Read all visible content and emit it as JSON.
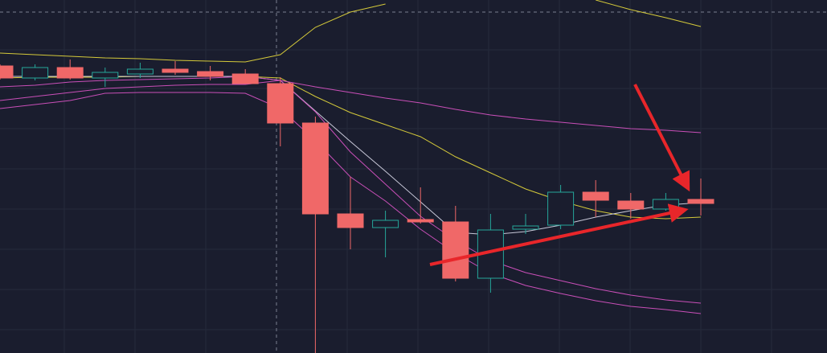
{
  "chart_data": {
    "type": "candlestick",
    "ylim": [
      0,
      439
    ],
    "up_color": "#26a69a",
    "down_color": "#f06868",
    "open": [
      357,
      342,
      355,
      342,
      347,
      353,
      350,
      347,
      335,
      286,
      173,
      156,
      166,
      163,
      93,
      154,
      159,
      200,
      189,
      179,
      191
    ],
    "close": [
      342,
      355,
      342,
      349,
      353,
      349,
      344,
      335,
      286,
      173,
      156,
      165,
      163,
      93,
      153,
      158,
      200,
      190,
      179,
      191,
      186
    ],
    "high": [
      359,
      359,
      365,
      355,
      361,
      363,
      357,
      353,
      343,
      294,
      219,
      177,
      206,
      183,
      173,
      173,
      209,
      215,
      199,
      199,
      217
    ],
    "low": [
      340,
      339,
      340,
      331,
      342,
      346,
      339,
      335,
      257,
      0,
      129,
      119,
      161,
      89,
      75,
      148,
      154,
      169,
      167,
      177,
      171
    ],
    "series": [
      {
        "color": "#d4c93a",
        "values": [
          373,
          371,
          369,
          367,
          366,
          364,
          363,
          362,
          371,
          405,
          424,
          434,
          null,
          null,
          null,
          null,
          null,
          439,
          427,
          417,
          406
        ]
      },
      {
        "color": "#d4c93a",
        "values": [
          342,
          343,
          343,
          343,
          344,
          344,
          344,
          344,
          342,
          319,
          299,
          284,
          269,
          244,
          224,
          204,
          189,
          177,
          169,
          167,
          169
        ]
      },
      {
        "color": "#c8c8d8",
        "values": [
          344,
          344,
          344,
          344,
          344,
          344,
          344,
          344,
          339,
          301,
          263,
          226,
          188,
          150,
          147,
          151,
          159,
          169,
          177,
          184,
          187
        ]
      },
      {
        "color": "#c94fb8",
        "values": [
          331,
          333,
          337,
          339,
          340,
          341,
          342,
          344,
          339,
          331,
          324,
          317,
          311,
          303,
          296,
          291,
          287,
          283,
          279,
          277,
          274
        ]
      },
      {
        "color": "#c94fb8",
        "values": [
          314,
          319,
          324,
          329,
          331,
          333,
          334,
          334,
          339,
          300,
          250,
          210,
          170,
          140,
          115,
          100,
          90,
          80,
          72,
          66,
          62
        ]
      },
      {
        "color": "#c94fb8",
        "values": [
          304,
          309,
          314,
          323,
          324,
          324,
          324,
          323,
          304,
          264,
          219,
          189,
          154,
          124,
          99,
          84,
          74,
          65,
          58,
          54,
          49
        ]
      }
    ]
  }
}
